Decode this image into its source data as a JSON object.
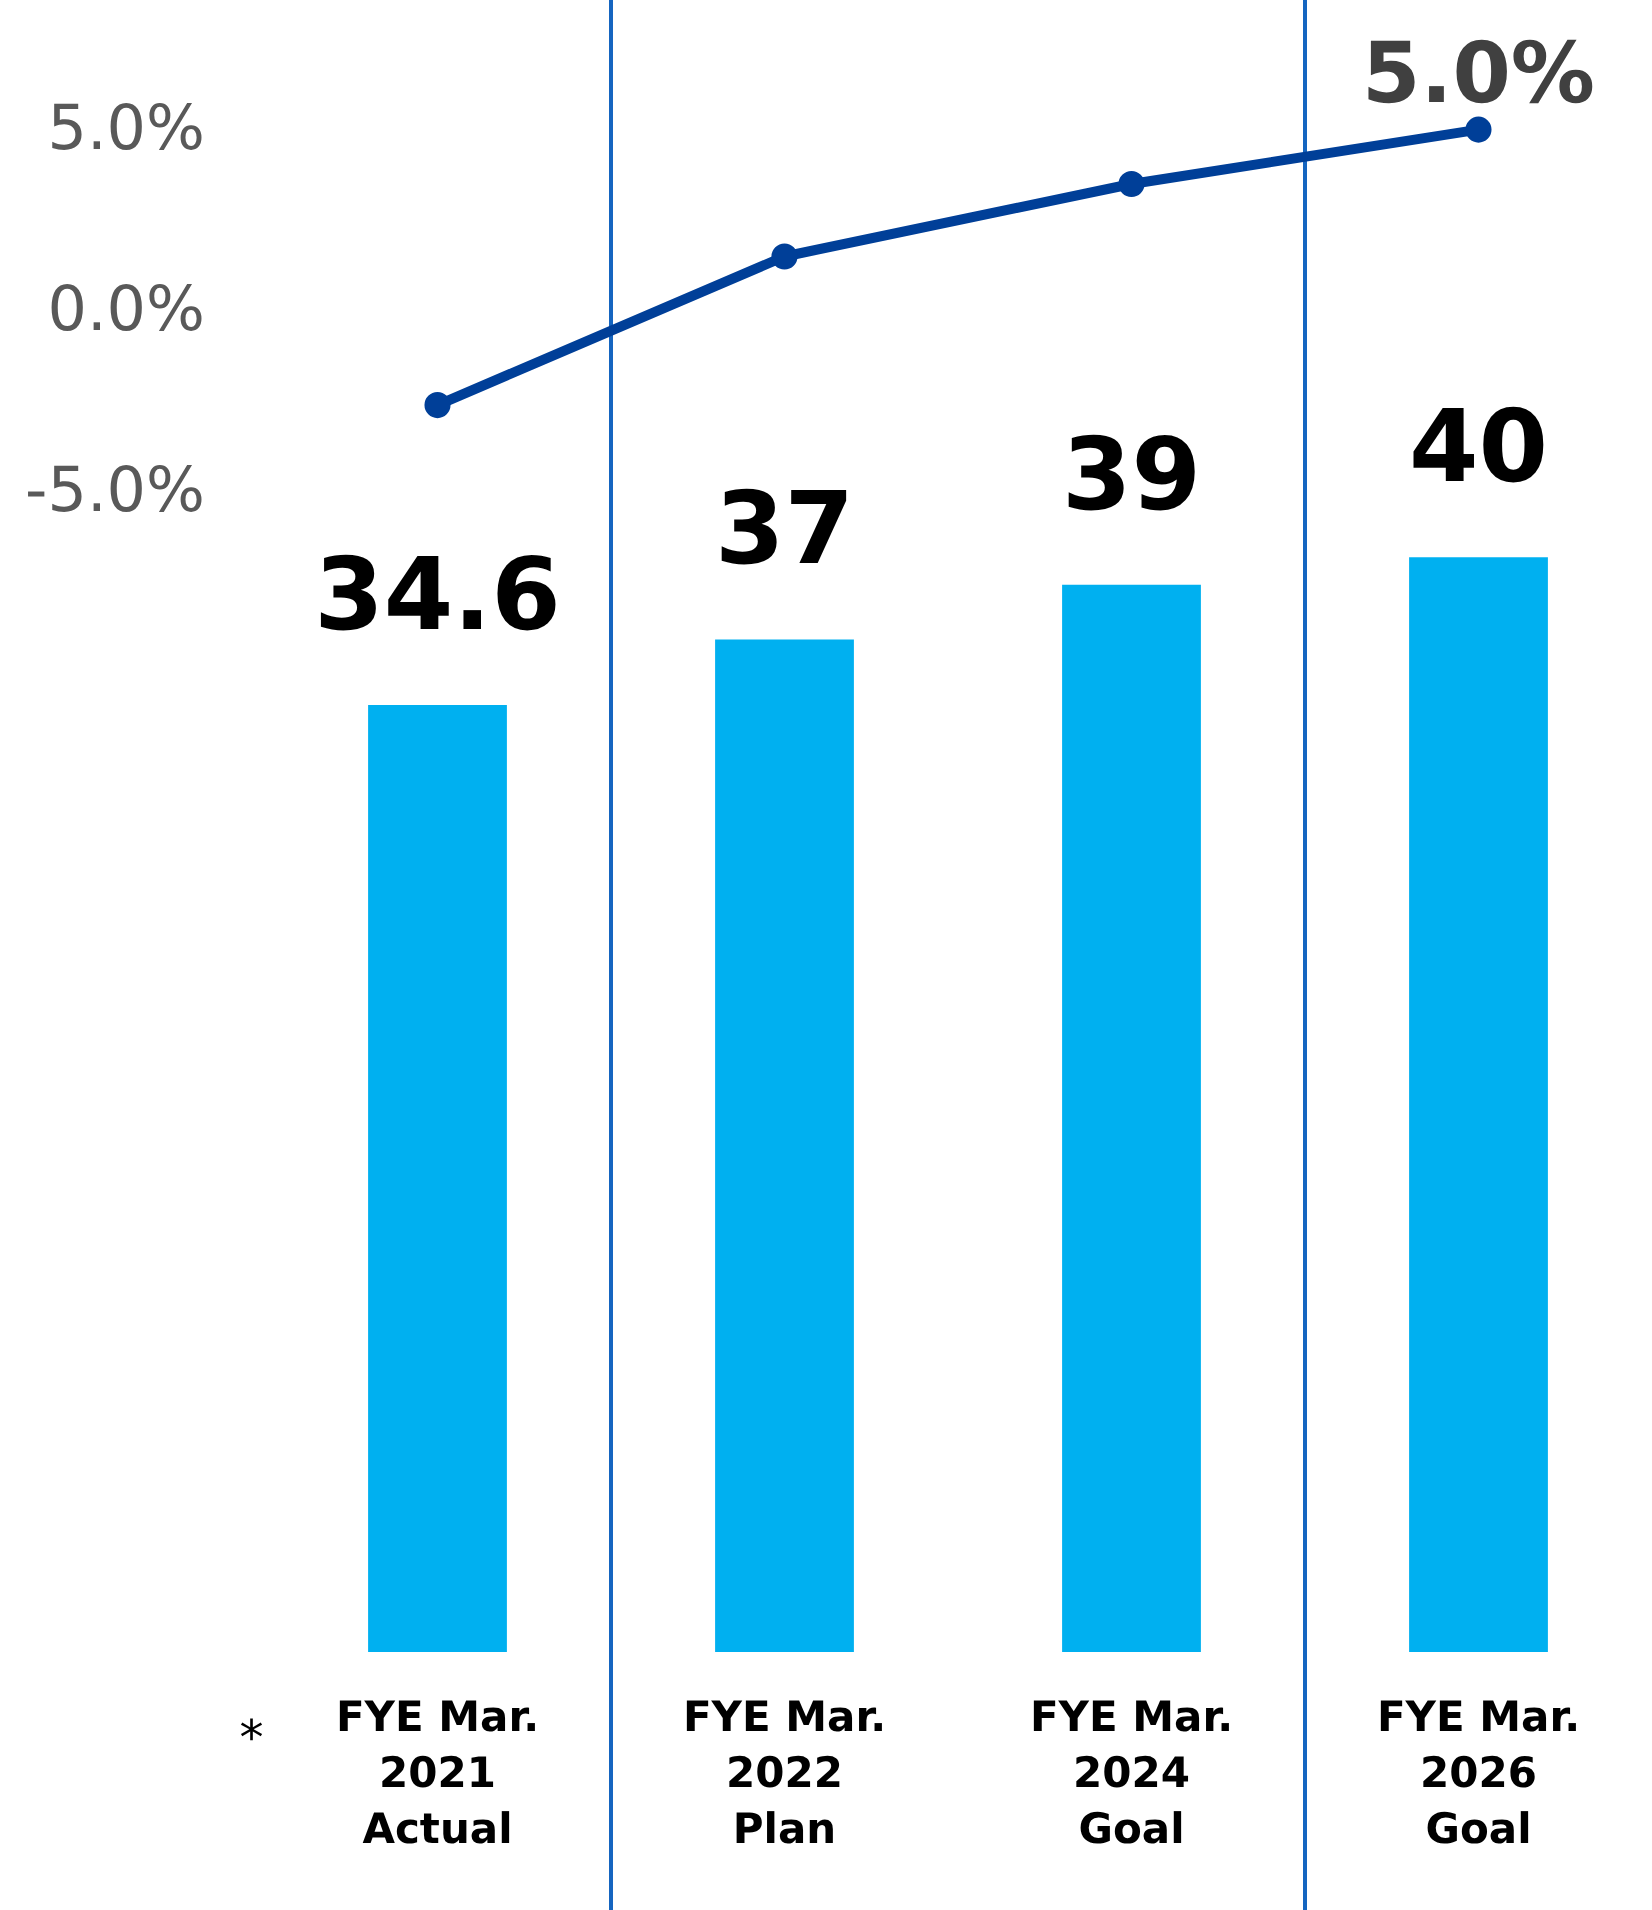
{
  "chart_data": {
    "type": "bar",
    "categories": [
      "FYE Mar.\n2021\nActual",
      "FYE Mar.\n2022\nPlan",
      "FYE Mar.\n2024\nGoal",
      "FYE Mar.\n2026\nGoal"
    ],
    "series": [
      {
        "color": "#00b0f0",
        "axis": "y2",
        "values": [
          34.6,
          37,
          39,
          40
        ],
        "value_labels": [
          "34.6",
          "37",
          "39",
          "40"
        ]
      },
      {
        "type": "line",
        "color": "#003f98",
        "values": [
          -2.6,
          1.5,
          3.5,
          5.0
        ],
        "value_labels": [
          null,
          null,
          null,
          "5.0%"
        ]
      }
    ],
    "ylim": [
      -37,
      8.3
    ],
    "yticks": [
      {
        "value": 5,
        "label": "5.0%"
      },
      {
        "value": 0,
        "label": "0.0%"
      },
      {
        "value": -5,
        "label": "-5.0%"
      }
    ],
    "y2lim": [
      0,
      60
    ],
    "marker": "circle",
    "grid": false,
    "annotations": [
      "*"
    ]
  }
}
